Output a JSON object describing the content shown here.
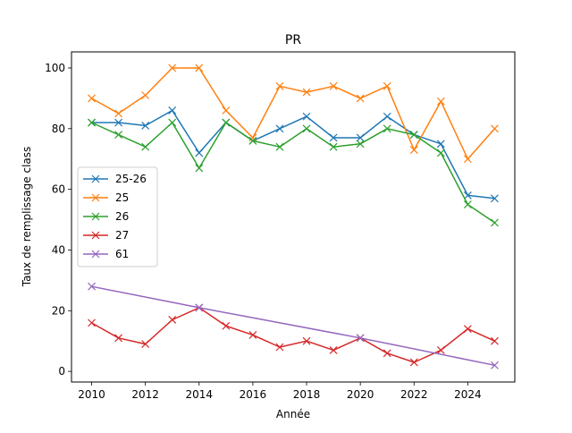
{
  "chart_data": {
    "type": "line",
    "title": "PR",
    "xlabel": "Année",
    "ylabel": "Taux de remplissage class",
    "xlim": [
      2009.25,
      2025.75
    ],
    "ylim": [
      -3.5,
      105.3
    ],
    "xticks": [
      2010,
      2012,
      2014,
      2016,
      2018,
      2020,
      2022,
      2024
    ],
    "yticks": [
      0,
      20,
      40,
      60,
      80,
      100
    ],
    "grid": false,
    "legend_position": "center-left",
    "marker": "x",
    "series": [
      {
        "name": "25-26",
        "color": "#1f77b4",
        "x": [
          2010,
          2011,
          2012,
          2013,
          2014,
          2015,
          2016,
          2017,
          2018,
          2019,
          2020,
          2021,
          2022,
          2023,
          2024,
          2025
        ],
        "values": [
          82,
          82,
          81,
          86,
          72,
          82,
          76,
          80,
          84,
          77,
          77,
          84,
          78,
          75,
          58,
          57
        ]
      },
      {
        "name": "25",
        "color": "#ff7f0e",
        "x": [
          2010,
          2011,
          2012,
          2013,
          2014,
          2015,
          2016,
          2017,
          2018,
          2019,
          2020,
          2021,
          2022,
          2023,
          2024,
          2025
        ],
        "values": [
          90,
          85,
          91,
          100,
          100,
          86,
          77,
          94,
          92,
          94,
          90,
          94,
          73,
          89,
          70,
          80
        ]
      },
      {
        "name": "26",
        "color": "#2ca02c",
        "x": [
          2010,
          2011,
          2012,
          2013,
          2014,
          2015,
          2016,
          2017,
          2018,
          2019,
          2020,
          2021,
          2022,
          2023,
          2024,
          2025
        ],
        "values": [
          82,
          78,
          74,
          82,
          67,
          82,
          76,
          74,
          80,
          74,
          75,
          80,
          78,
          72,
          55,
          49
        ]
      },
      {
        "name": "27",
        "color": "#d62728",
        "x": [
          2010,
          2011,
          2012,
          2013,
          2014,
          2015,
          2016,
          2017,
          2018,
          2019,
          2020,
          2021,
          2022,
          2023,
          2024,
          2025
        ],
        "values": [
          16,
          11,
          9,
          17,
          21,
          15,
          12,
          8,
          10,
          7,
          11,
          6,
          3,
          7,
          14,
          10
        ]
      },
      {
        "name": "61",
        "color": "#9467bd",
        "x": [
          2010,
          2014,
          2020,
          2025
        ],
        "values": [
          28,
          21,
          11,
          2
        ]
      }
    ]
  }
}
